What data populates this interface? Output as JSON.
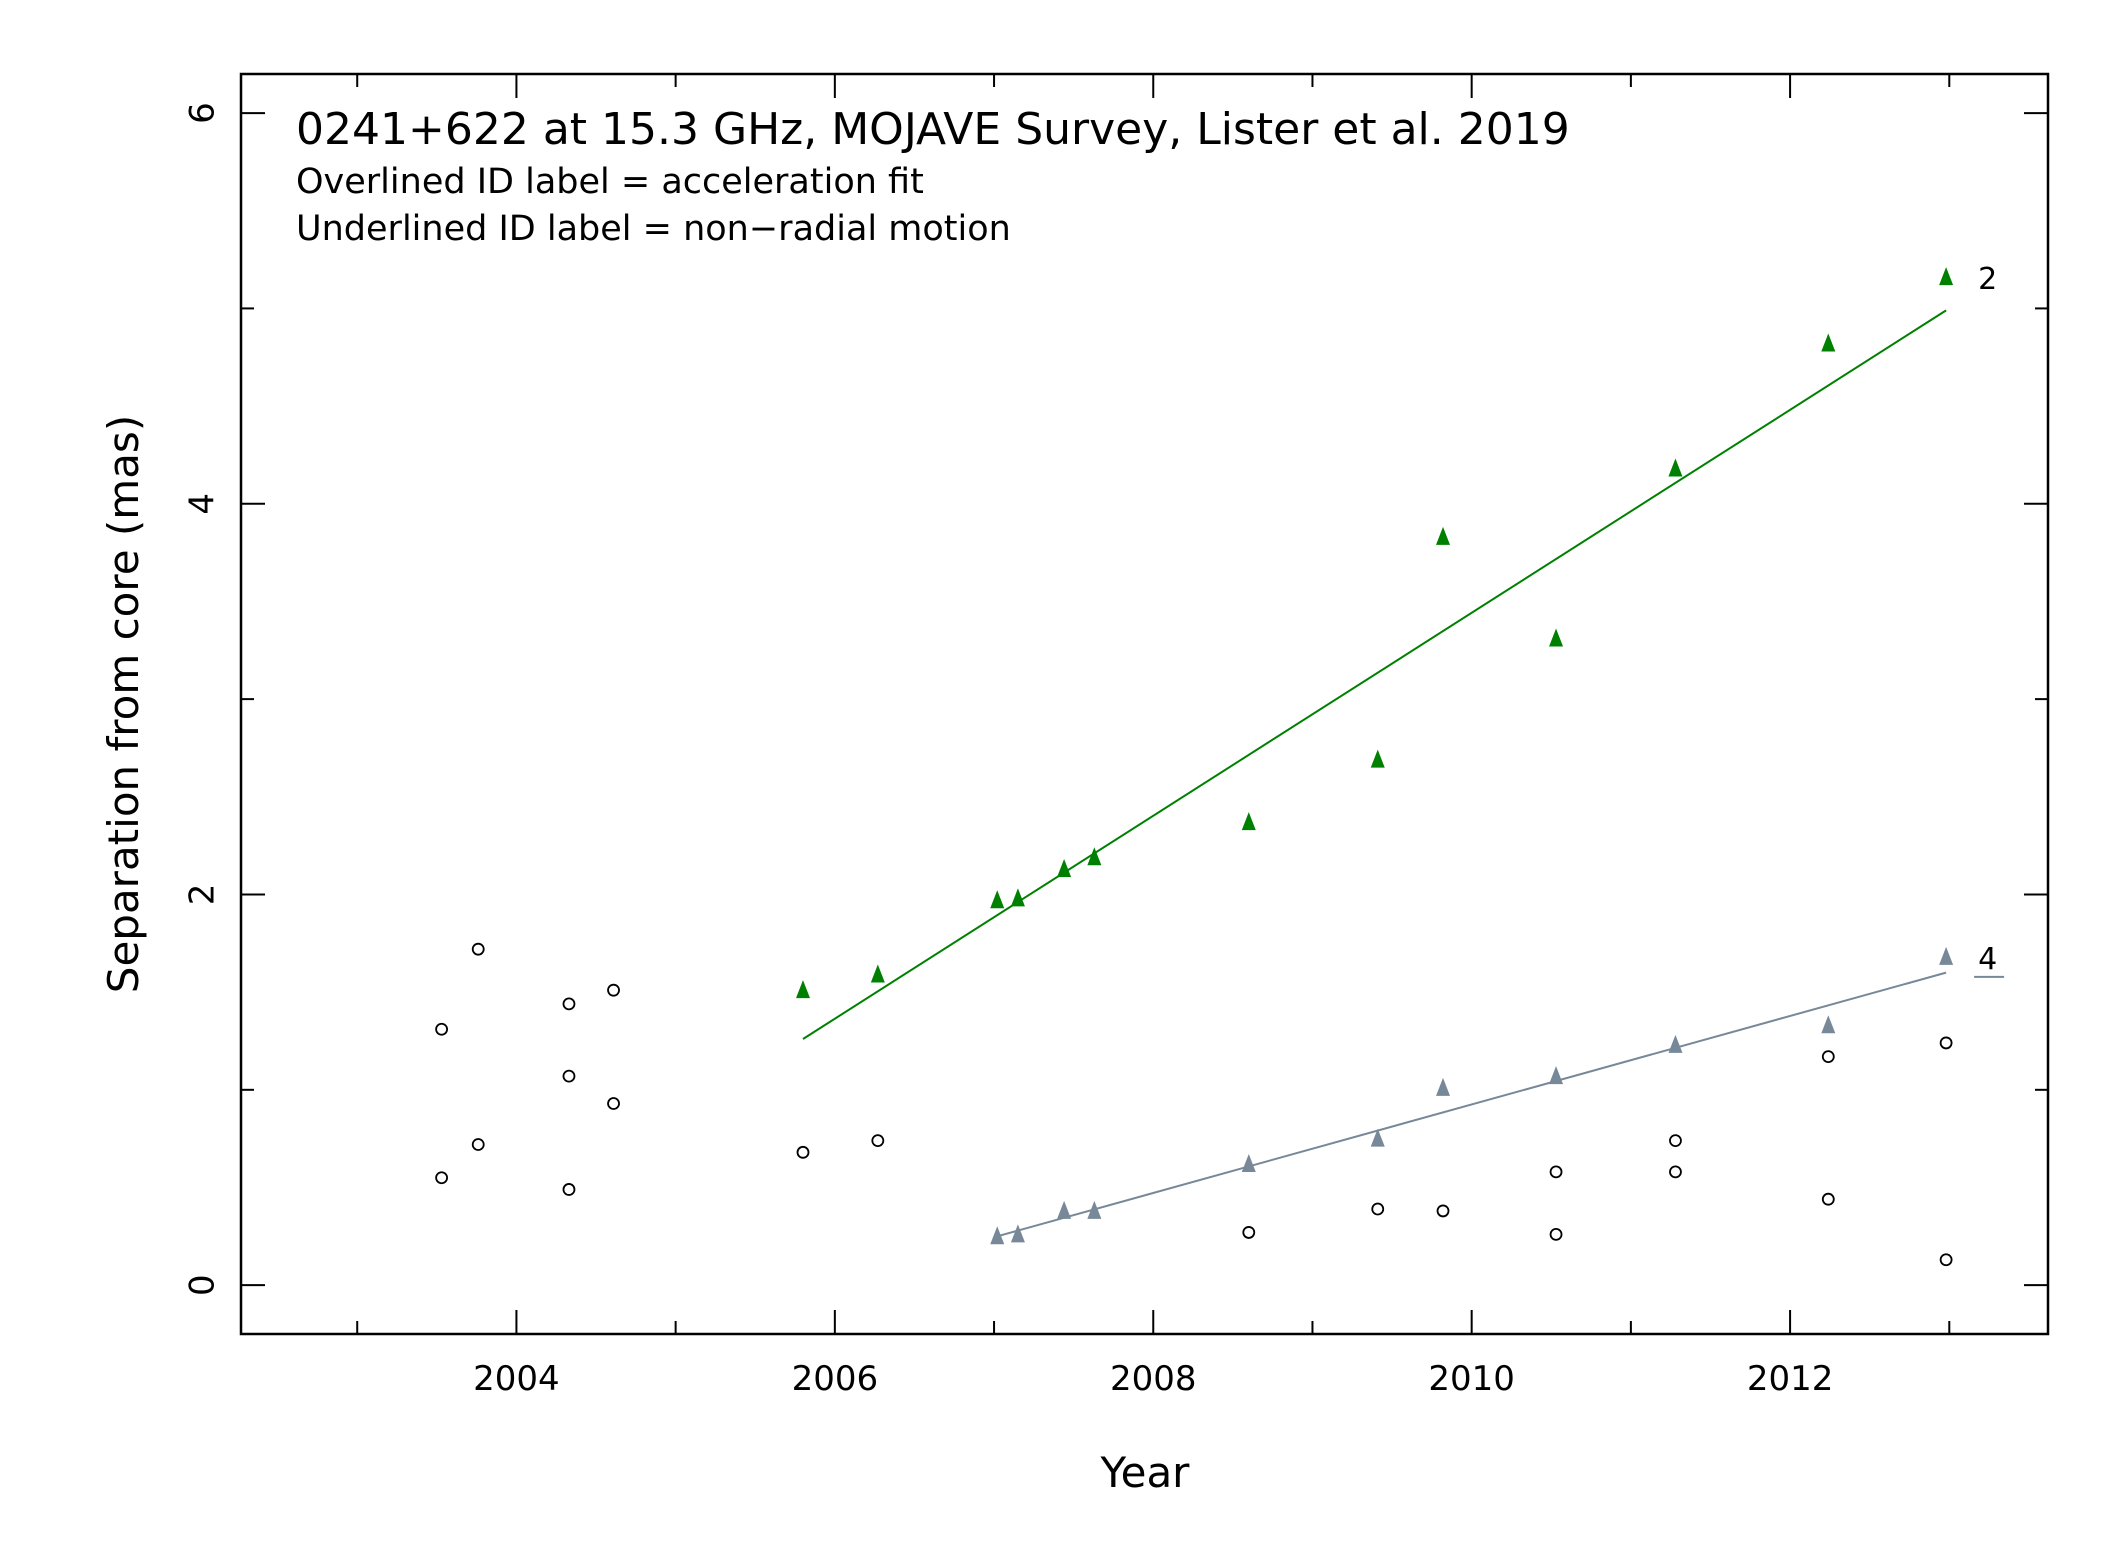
{
  "chart_data": {
    "type": "scatter",
    "title": "0241+622 at 15.3 GHz, MOJAVE Survey, Lister et al. 2019",
    "notes": [
      "Overlined ID label = acceleration fit",
      "Underlined ID label = non−radial motion"
    ],
    "xlabel": "Year",
    "ylabel": "Separation from core (mas)",
    "xlim": [
      2002.27,
      2013.62
    ],
    "ylim": [
      -0.25,
      6.2
    ],
    "xticks_major": [
      2004,
      2006,
      2008,
      2010,
      2012
    ],
    "xtick_labels": [
      "2004",
      "2006",
      "2008",
      "2010",
      "2012"
    ],
    "yticks_major": [
      0,
      2,
      4,
      6
    ],
    "ytick_labels": [
      "0",
      "2",
      "4",
      "6"
    ],
    "grid": false,
    "legend": "none",
    "series": [
      {
        "id": "2",
        "label_style": "plain",
        "color": "#008000",
        "marker": "triangle",
        "points": [
          [
            2005.8,
            1.5
          ],
          [
            2006.27,
            1.58
          ],
          [
            2007.02,
            1.96
          ],
          [
            2007.15,
            1.97
          ],
          [
            2007.44,
            2.12
          ],
          [
            2007.63,
            2.18
          ],
          [
            2008.6,
            2.36
          ],
          [
            2009.41,
            2.68
          ],
          [
            2009.82,
            3.82
          ],
          [
            2010.53,
            3.3
          ],
          [
            2011.28,
            4.17
          ],
          [
            2012.24,
            4.81
          ],
          [
            2012.98,
            5.15
          ]
        ],
        "fit": [
          [
            2005.8,
            1.26
          ],
          [
            2012.98,
            4.99
          ]
        ]
      },
      {
        "id": "4",
        "label_style": "underlined",
        "color": "#778899",
        "marker": "triangle",
        "points": [
          [
            2007.02,
            0.24
          ],
          [
            2007.15,
            0.25
          ],
          [
            2007.44,
            0.37
          ],
          [
            2007.63,
            0.37
          ],
          [
            2008.6,
            0.61
          ],
          [
            2009.41,
            0.74
          ],
          [
            2009.82,
            1.0
          ],
          [
            2010.53,
            1.06
          ],
          [
            2011.28,
            1.22
          ],
          [
            2012.24,
            1.32
          ],
          [
            2012.98,
            1.67
          ]
        ],
        "fit": [
          [
            2007.02,
            0.25
          ],
          [
            2012.98,
            1.6
          ]
        ]
      },
      {
        "id": "other",
        "color": "#000000",
        "marker": "open-circle",
        "points": [
          [
            2003.53,
            1.31
          ],
          [
            2003.53,
            0.55
          ],
          [
            2003.76,
            1.72
          ],
          [
            2003.76,
            0.72
          ],
          [
            2004.33,
            1.44
          ],
          [
            2004.33,
            1.07
          ],
          [
            2004.33,
            0.49
          ],
          [
            2004.61,
            1.51
          ],
          [
            2004.61,
            0.93
          ],
          [
            2005.8,
            0.68
          ],
          [
            2006.27,
            0.74
          ],
          [
            2008.6,
            0.27
          ],
          [
            2009.41,
            0.39
          ],
          [
            2009.82,
            0.38
          ],
          [
            2010.53,
            0.58
          ],
          [
            2010.53,
            0.26
          ],
          [
            2011.28,
            0.74
          ],
          [
            2011.28,
            0.58
          ],
          [
            2012.24,
            1.17
          ],
          [
            2012.24,
            0.44
          ],
          [
            2012.98,
            1.24
          ],
          [
            2012.98,
            0.13
          ]
        ]
      }
    ]
  }
}
